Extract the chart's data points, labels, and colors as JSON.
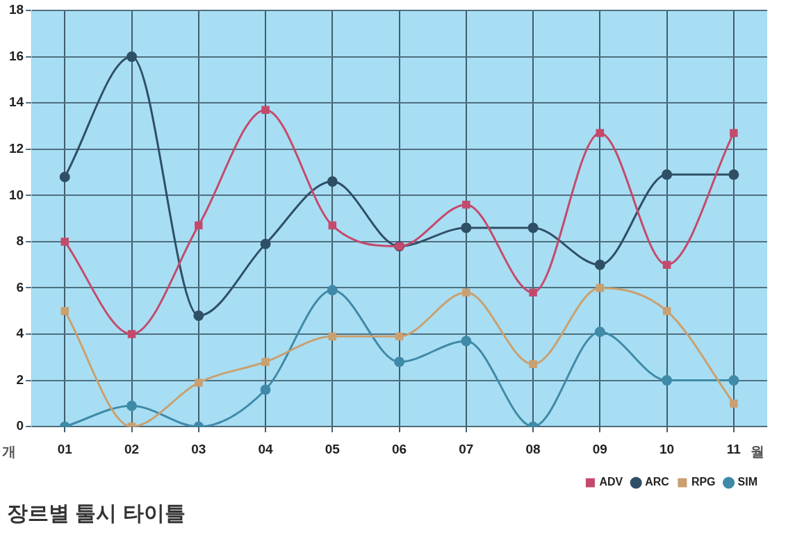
{
  "chart_data": {
    "type": "line",
    "title": "장르별 툴시 타이틀",
    "xlabel": "월",
    "ylabel": "개",
    "categories": [
      "01",
      "02",
      "03",
      "04",
      "05",
      "06",
      "07",
      "08",
      "09",
      "10",
      "11"
    ],
    "series": [
      {
        "name": "ADV",
        "color": "#c44a6c",
        "marker": "square",
        "values": [
          8.0,
          4.0,
          8.7,
          13.7,
          8.7,
          7.8,
          9.6,
          5.8,
          12.7,
          7.0,
          12.7
        ]
      },
      {
        "name": "ARC",
        "color": "#2f4f66",
        "marker": "circle",
        "values": [
          10.8,
          16.0,
          4.8,
          7.9,
          10.6,
          7.8,
          8.6,
          8.6,
          7.0,
          10.9,
          10.9
        ]
      },
      {
        "name": "RPG",
        "color": "#c9a070",
        "marker": "square",
        "values": [
          5.0,
          0,
          1.9,
          2.8,
          3.9,
          3.9,
          5.8,
          2.7,
          6.0,
          5.0,
          1.0
        ]
      },
      {
        "name": "SIM",
        "color": "#3f8aa8",
        "marker": "circle",
        "values": [
          0,
          0.9,
          0,
          1.6,
          5.9,
          2.8,
          3.7,
          0,
          4.1,
          2.0,
          2.0
        ]
      }
    ],
    "ylim": [
      0,
      18
    ],
    "yticks": [
      0,
      2,
      4,
      6,
      8,
      10,
      12,
      14,
      16,
      18
    ],
    "grid": true,
    "legend": "bottom right",
    "line_style": "solid"
  }
}
